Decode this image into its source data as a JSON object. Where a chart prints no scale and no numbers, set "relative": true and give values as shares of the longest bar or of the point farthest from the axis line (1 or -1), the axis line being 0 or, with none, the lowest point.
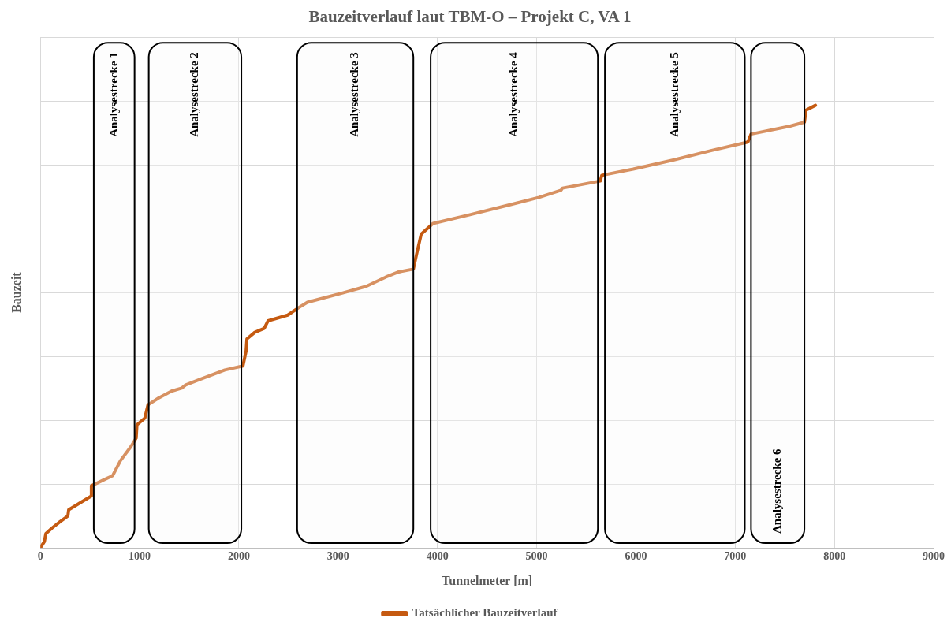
{
  "chart_data": {
    "type": "line",
    "title": "Bauzeitverlauf laut TBM-O – Projekt C, VA 1",
    "xlabel": "Tunnelmeter [m]",
    "ylabel": "Bauzeit",
    "relative": true,
    "xlim": [
      0,
      9000
    ],
    "xticks": [
      0,
      1000,
      2000,
      3000,
      4000,
      5000,
      6000,
      7000,
      8000,
      9000
    ],
    "grid": true,
    "legend": "bottom",
    "marker": "none",
    "line_style": "solid",
    "series": [
      {
        "name": "Tatsächlicher Bauzeitverlauf",
        "color": "#c55a11",
        "x": [
          0,
          40,
          55,
          119,
          198,
          277,
          285,
          396,
          514,
          514,
          633,
          728,
          807,
          910,
          965,
          973,
          1052,
          1084,
          1187,
          1321,
          1424,
          1464,
          1622,
          1859,
          2041,
          2073,
          2081,
          2160,
          2255,
          2294,
          2492,
          2611,
          2690,
          2809,
          3046,
          3283,
          3481,
          3600,
          3758,
          3797,
          3837,
          3956,
          4312,
          4707,
          5024,
          5245,
          5261,
          5641,
          5657,
          5973,
          6369,
          6764,
          7128,
          7160,
          7555,
          7698,
          7714,
          7809
        ],
        "values": [
          0,
          0.014,
          0.032,
          0.045,
          0.059,
          0.072,
          0.086,
          0.101,
          0.117,
          0.14,
          0.153,
          0.163,
          0.197,
          0.228,
          0.248,
          0.278,
          0.293,
          0.323,
          0.338,
          0.354,
          0.361,
          0.368,
          0.382,
          0.402,
          0.411,
          0.445,
          0.472,
          0.487,
          0.496,
          0.513,
          0.526,
          0.544,
          0.555,
          0.562,
          0.576,
          0.591,
          0.612,
          0.623,
          0.63,
          0.67,
          0.709,
          0.733,
          0.752,
          0.774,
          0.792,
          0.808,
          0.813,
          0.829,
          0.842,
          0.856,
          0.876,
          0.898,
          0.917,
          0.935,
          0.953,
          0.962,
          0.989,
          1
        ]
      }
    ],
    "bands": [
      {
        "axis": "x",
        "from": 538,
        "to": 949,
        "label": "Analysestrecke 1"
      },
      {
        "axis": "x",
        "from": 1092,
        "to": 2025,
        "label": "Analysestrecke 2"
      },
      {
        "axis": "x",
        "from": 2587,
        "to": 3758,
        "label": "Analysestrecke 3"
      },
      {
        "axis": "x",
        "from": 3932,
        "to": 5617,
        "label": "Analysestrecke 4"
      },
      {
        "axis": "x",
        "from": 5688,
        "to": 7097,
        "label": "Analysestrecke 5"
      },
      {
        "axis": "x",
        "from": 7160,
        "to": 7698,
        "label": "Analysestrecke 6"
      }
    ]
  }
}
